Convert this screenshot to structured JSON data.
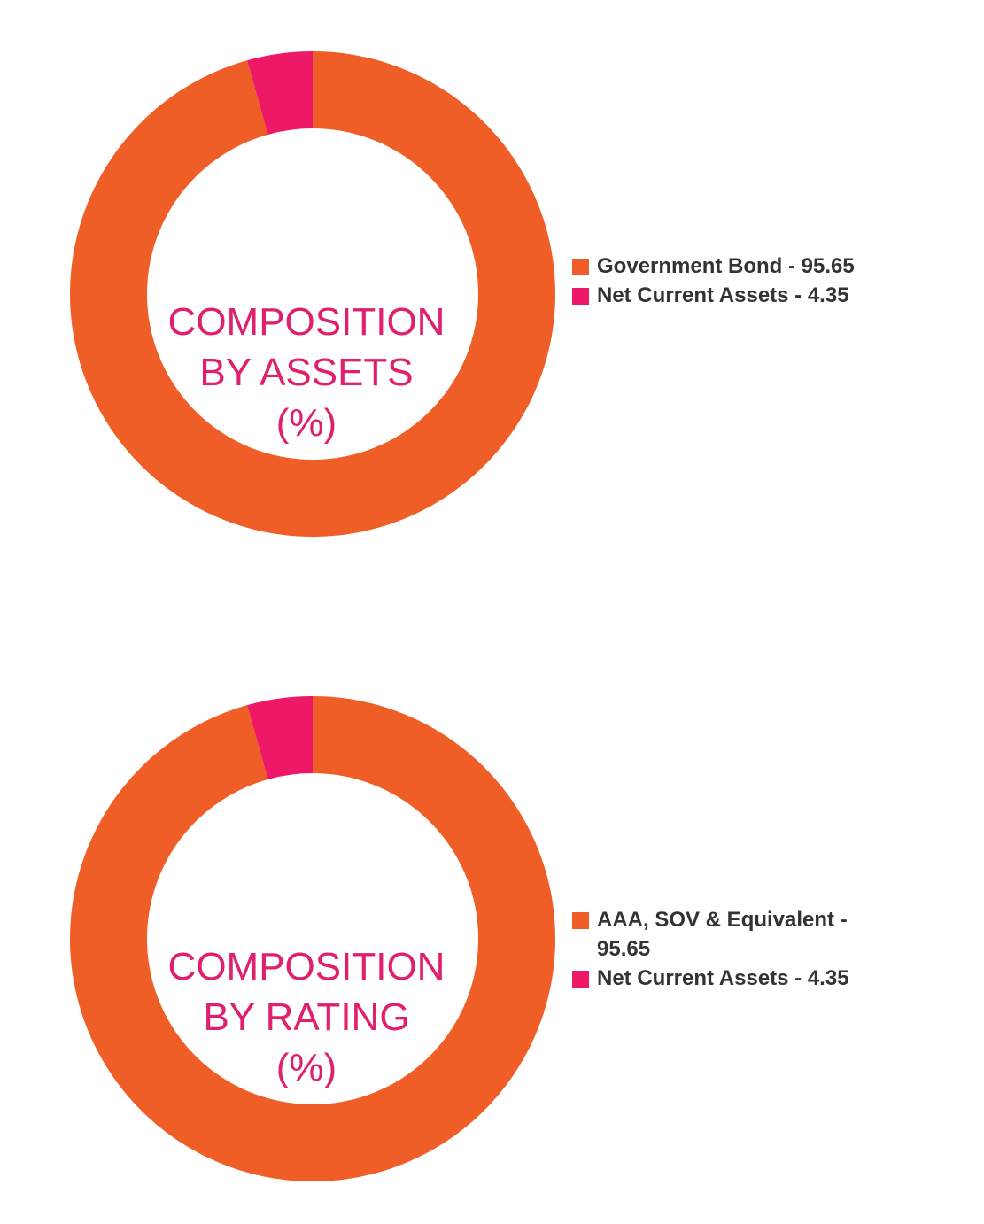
{
  "colors": {
    "primary": "#f05e27",
    "secondary": "#ed1967",
    "title": "#e0206d",
    "legend_text": "#333333"
  },
  "chart_data": [
    {
      "type": "pie",
      "subtype": "donut",
      "title_lines": [
        "COMPOSITION",
        "BY ASSETS",
        "(%)"
      ],
      "categories": [
        "Government Bond",
        "Net Current Assets"
      ],
      "values": [
        95.65,
        4.35
      ],
      "legend_labels": [
        "Government Bond - 95.65",
        "Net Current Assets - 4.35"
      ],
      "colors": [
        "#f05e27",
        "#ed1967"
      ],
      "legend_position": "right"
    },
    {
      "type": "pie",
      "subtype": "donut",
      "title_lines": [
        "COMPOSITION",
        "BY RATING",
        "(%)"
      ],
      "categories": [
        "AAA, SOV & Equivalent",
        "Net Current Assets"
      ],
      "values": [
        95.65,
        4.35
      ],
      "legend_labels": [
        "AAA, SOV & Equivalent - 95.65",
        "Net Current Assets - 4.35"
      ],
      "colors": [
        "#f05e27",
        "#ed1967"
      ],
      "legend_position": "right"
    }
  ]
}
